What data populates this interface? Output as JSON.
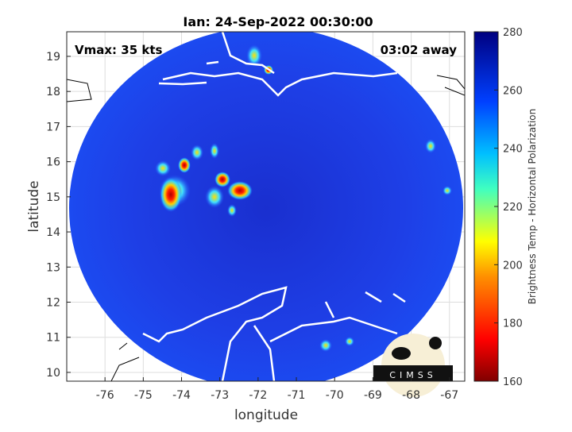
{
  "title": "Ian: 24-Sep-2022 00:30:00",
  "vmax_label": "Vmax: 35 kts",
  "away_label": "03:02 away",
  "xlabel": "longitude",
  "ylabel": "latitude",
  "x_ticks": [
    "-76",
    "-75",
    "-74",
    "-73",
    "-72",
    "-71",
    "-70",
    "-69",
    "-68",
    "-67"
  ],
  "x_tick_values": [
    -76,
    -75,
    -74,
    -73,
    -72,
    -71,
    -70,
    -69,
    -68,
    -67
  ],
  "y_ticks": [
    "10",
    "11",
    "12",
    "13",
    "14",
    "15",
    "16",
    "17",
    "18",
    "19"
  ],
  "y_tick_values": [
    10,
    11,
    12,
    13,
    14,
    15,
    16,
    17,
    18,
    19
  ],
  "xlim": [
    -77,
    -66.6
  ],
  "ylim": [
    9.75,
    19.7
  ],
  "colorbar": {
    "label": "Brightness Temp - Horizontal Polarization",
    "ticks": [
      "280",
      "260",
      "240",
      "220",
      "200",
      "180",
      "160"
    ],
    "tick_values": [
      280,
      260,
      240,
      220,
      200,
      180,
      160
    ],
    "range": [
      160,
      280
    ]
  },
  "logo_text": "CIMSS",
  "colors": {
    "disk": "#1a3fe0",
    "hot": "#c01010",
    "coast": "#ffffff"
  }
}
